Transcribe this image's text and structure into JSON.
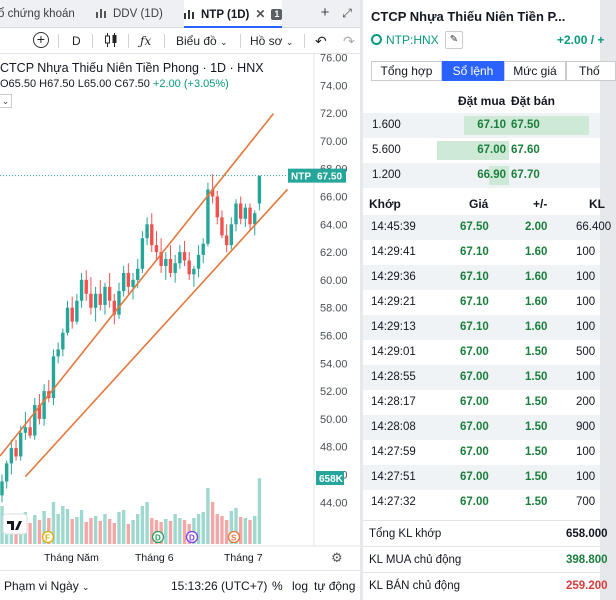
{
  "tabs": [
    {
      "label": "ổ chứng khoán"
    },
    {
      "label": "DDV (1D)"
    },
    {
      "label": "NTP (1D)",
      "count": "1"
    }
  ],
  "toolbar": {
    "interval": "D",
    "chart_type_label": "Biểu đồ",
    "profile_label": "Hồ sơ"
  },
  "legend": {
    "title": "CTCP Nhựa Thiếu Niên Tiền Phong · 1D · HNX",
    "open": "O65.50",
    "high": "H67.50",
    "low": "L65.00",
    "close": "C67.50",
    "change": "+2.00 (+3.05%)"
  },
  "price_axis": {
    "ticks": [
      "76.00",
      "74.00",
      "72.00",
      "70.00",
      "68.00",
      "66.00",
      "64.00",
      "62.00",
      "60.00",
      "58.00",
      "56.00",
      "54.00",
      "52.00",
      "50.00",
      "48.00",
      "46.00",
      "44.00"
    ],
    "top_partial": "76.00"
  },
  "price_label": {
    "symbol": "NTP",
    "value": "67.50"
  },
  "volume_label": "658K",
  "time_axis": [
    "Tháng Năm",
    "Tháng 6",
    "Tháng 7"
  ],
  "event_markers": [
    "F",
    "D",
    "D",
    "S"
  ],
  "statusbar": {
    "range": "Phạm vi Ngày",
    "clock": "15:13:26 (UTC+7)",
    "percent": "%",
    "log": "log",
    "auto": "tự động"
  },
  "colors": {
    "up": "#26a69a",
    "down": "#ef5350",
    "channel": "#e4773b",
    "accent": "#2962ff",
    "green_text": "#1a7f3c"
  },
  "chart_data": {
    "type": "candlestick",
    "title": "CTCP Nhựa Thiếu Niên Tiền Phong · 1D · HNX",
    "ylim": [
      43,
      77
    ],
    "x_labels": [
      "Tháng Năm",
      "Tháng 6",
      "Tháng 7"
    ],
    "candles": [
      [
        44.5,
        46.0,
        44.0,
        45.5
      ],
      [
        45.5,
        47.0,
        45.0,
        46.8
      ],
      [
        46.8,
        48.5,
        46.0,
        47.9
      ],
      [
        47.9,
        48.5,
        47.0,
        47.3
      ],
      [
        47.3,
        49.5,
        47.0,
        49.0
      ],
      [
        49.0,
        50.5,
        48.5,
        49.4
      ],
      [
        49.4,
        50.0,
        48.6,
        48.8
      ],
      [
        48.8,
        51.5,
        48.5,
        51.0
      ],
      [
        51.0,
        51.8,
        49.6,
        50.0
      ],
      [
        50.0,
        52.5,
        49.5,
        52.0
      ],
      [
        52.0,
        52.8,
        51.2,
        51.5
      ],
      [
        51.5,
        55.0,
        51.0,
        54.5
      ],
      [
        54.5,
        55.5,
        54.0,
        55.0
      ],
      [
        55.0,
        56.5,
        54.5,
        56.2
      ],
      [
        56.2,
        58.5,
        56.0,
        58.0
      ],
      [
        58.0,
        58.8,
        56.5,
        57.0
      ],
      [
        57.0,
        59.0,
        56.8,
        58.5
      ],
      [
        58.5,
        60.5,
        58.0,
        60.0
      ],
      [
        60.0,
        60.7,
        58.5,
        59.0
      ],
      [
        59.0,
        60.2,
        57.5,
        58.0
      ],
      [
        58.0,
        59.5,
        57.0,
        59.0
      ],
      [
        59.0,
        60.0,
        57.8,
        58.2
      ],
      [
        58.2,
        59.8,
        57.5,
        59.5
      ],
      [
        59.5,
        60.5,
        58.0,
        58.5
      ],
      [
        58.5,
        59.0,
        56.8,
        57.5
      ],
      [
        57.5,
        59.8,
        57.2,
        59.2
      ],
      [
        59.2,
        61.0,
        58.8,
        60.5
      ],
      [
        60.5,
        61.2,
        59.0,
        59.5
      ],
      [
        59.5,
        60.5,
        58.6,
        60.0
      ],
      [
        60.0,
        61.5,
        59.4,
        60.8
      ],
      [
        60.8,
        63.5,
        60.5,
        63.0
      ],
      [
        63.0,
        64.5,
        62.5,
        64.0
      ],
      [
        64.0,
        64.8,
        62.0,
        62.5
      ],
      [
        62.5,
        63.5,
        61.5,
        62.0
      ],
      [
        62.0,
        63.0,
        60.5,
        61.0
      ],
      [
        61.0,
        62.0,
        60.0,
        61.5
      ],
      [
        61.5,
        62.5,
        60.2,
        60.5
      ],
      [
        60.5,
        61.8,
        59.8,
        61.2
      ],
      [
        61.2,
        62.5,
        60.8,
        62.0
      ],
      [
        62.0,
        62.8,
        61.0,
        61.4
      ],
      [
        61.4,
        62.0,
        60.0,
        60.4
      ],
      [
        60.4,
        61.0,
        59.5,
        60.8
      ],
      [
        60.8,
        62.5,
        60.2,
        61.8
      ],
      [
        61.8,
        63.0,
        61.2,
        62.6
      ],
      [
        62.6,
        67.0,
        62.4,
        66.5
      ],
      [
        66.5,
        67.6,
        65.5,
        66.0
      ],
      [
        66.0,
        66.4,
        64.0,
        64.5
      ],
      [
        64.5,
        65.0,
        63.0,
        63.2
      ],
      [
        63.2,
        64.0,
        62.0,
        62.5
      ],
      [
        62.5,
        64.5,
        62.2,
        64.0
      ],
      [
        64.0,
        65.8,
        63.5,
        65.5
      ],
      [
        65.5,
        66.0,
        64.0,
        64.4
      ],
      [
        64.4,
        65.5,
        63.8,
        65.2
      ],
      [
        65.2,
        65.5,
        63.5,
        64.0
      ],
      [
        64.0,
        65.0,
        63.2,
        64.8
      ],
      [
        65.5,
        67.5,
        65.0,
        67.5
      ]
    ],
    "volumes_k": [
      380,
      260,
      300,
      180,
      250,
      320,
      210,
      290,
      240,
      330,
      260,
      420,
      300,
      380,
      350,
      250,
      270,
      340,
      220,
      260,
      280,
      230,
      300,
      250,
      210,
      320,
      340,
      200,
      240,
      300,
      380,
      420,
      260,
      240,
      220,
      250,
      230,
      300,
      260,
      240,
      200,
      260,
      300,
      320,
      560,
      420,
      300,
      280,
      240,
      330,
      360,
      270,
      260,
      240,
      280,
      658
    ],
    "channel_upper": [
      [
        0,
        47.5
      ],
      [
        55,
        70.7
      ]
    ],
    "channel_lower": [
      [
        0,
        44.0
      ],
      [
        55,
        64.3
      ]
    ]
  },
  "order_panel": {
    "title": "CTCP Nhựa Thiếu Niên Tiền P...",
    "symbol": "NTP:HNX",
    "change": "+2.00 / +",
    "tabs": [
      "Tổng hợp",
      "Sổ lệnh",
      "Mức giá",
      "Thố"
    ],
    "orderbook_headers": {
      "bid": "Đặt mua",
      "ask": "Đặt bán"
    },
    "orderbook": [
      {
        "vol": "1.600",
        "bid": "67.10",
        "ask": "67.50",
        "bid_ratio": 0.62,
        "ask_ratio": 1.0
      },
      {
        "vol": "5.600",
        "bid": "67.00",
        "ask": "67.60",
        "bid_ratio": 1.0,
        "ask_ratio": 0.0
      },
      {
        "vol": "1.200",
        "bid": "66.90",
        "ask": "67.70",
        "bid_ratio": 0.28,
        "ask_ratio": 0.0
      }
    ],
    "trades_headers": {
      "time": "Khớp",
      "price": "Giá",
      "chg": "+/-",
      "vol": "KL"
    },
    "trades": [
      {
        "time": "14:45:39",
        "price": "67.50",
        "chg": "2.00",
        "vol": "66.400"
      },
      {
        "time": "14:29:41",
        "price": "67.10",
        "chg": "1.60",
        "vol": "100"
      },
      {
        "time": "14:29:36",
        "price": "67.10",
        "chg": "1.60",
        "vol": "100"
      },
      {
        "time": "14:29:21",
        "price": "67.10",
        "chg": "1.60",
        "vol": "100"
      },
      {
        "time": "14:29:13",
        "price": "67.10",
        "chg": "1.60",
        "vol": "100"
      },
      {
        "time": "14:29:01",
        "price": "67.00",
        "chg": "1.50",
        "vol": "500"
      },
      {
        "time": "14:28:55",
        "price": "67.00",
        "chg": "1.50",
        "vol": "100"
      },
      {
        "time": "14:28:17",
        "price": "67.00",
        "chg": "1.50",
        "vol": "200"
      },
      {
        "time": "14:28:08",
        "price": "67.00",
        "chg": "1.50",
        "vol": "900"
      },
      {
        "time": "14:27:59",
        "price": "67.00",
        "chg": "1.50",
        "vol": "100"
      },
      {
        "time": "14:27:51",
        "price": "67.00",
        "chg": "1.50",
        "vol": "100"
      },
      {
        "time": "14:27:32",
        "price": "67.00",
        "chg": "1.50",
        "vol": "700"
      }
    ],
    "summary": [
      {
        "label": "Tổng KL khớp",
        "value": "658.000",
        "color": "#131722"
      },
      {
        "label": "KL MUA chủ động",
        "value": "398.800",
        "color": "#1a7f3c"
      },
      {
        "label": "KL BÁN chủ động",
        "value": "259.200",
        "color": "#d93a3a"
      }
    ]
  }
}
